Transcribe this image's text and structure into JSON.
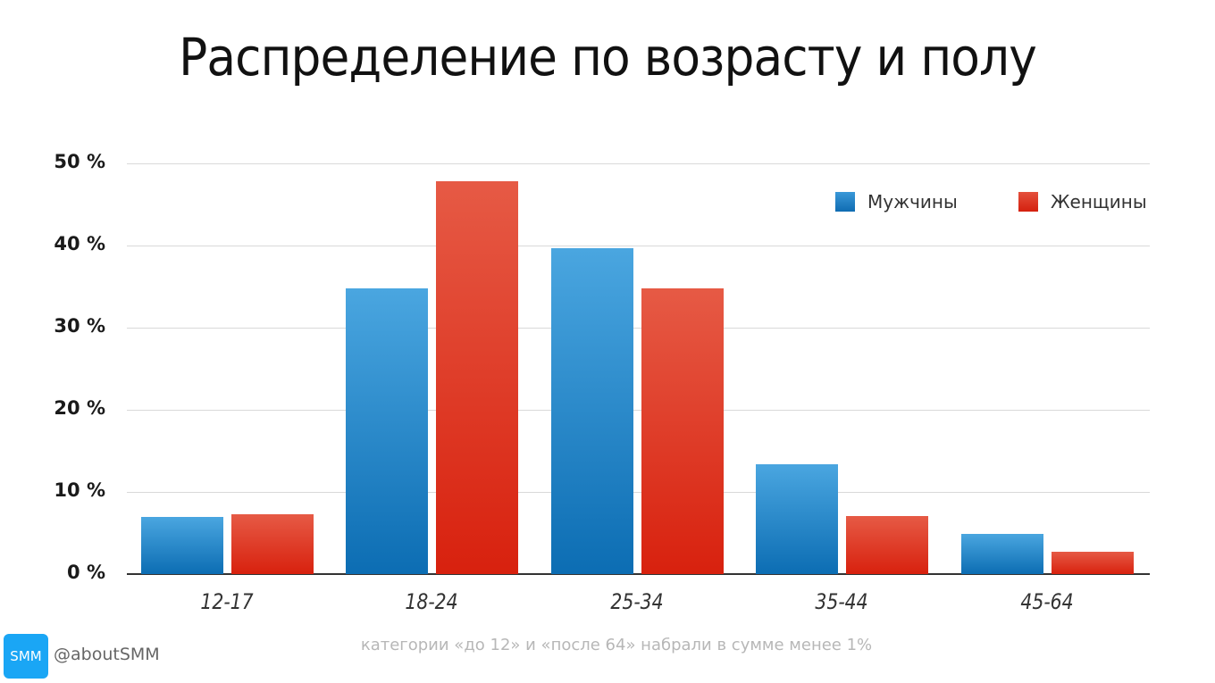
{
  "title": "Распределение по возрасту и полу",
  "legend": {
    "male": "Мужчины",
    "female": "Женщины"
  },
  "footnote": "категории «до 12» и «после 64» набрали в сумме менее 1%",
  "brand": {
    "badge": "SMM",
    "handle": "@aboutSMM",
    "badge_color": "#1aa6f5"
  },
  "colors": {
    "male": "#1a7fc4",
    "female": "#e0341f"
  },
  "yticks": [
    "50 %",
    "40 %",
    "30 %",
    "20 %",
    "10 %",
    "0 %"
  ],
  "chart_data": {
    "type": "bar",
    "title": "Распределение по возрасту и полу",
    "categories": [
      "12-17",
      "18-24",
      "25-34",
      "35-44",
      "45-64"
    ],
    "series": [
      {
        "name": "Мужчины",
        "values": [
          7.0,
          34.8,
          39.7,
          13.4,
          4.9
        ]
      },
      {
        "name": "Женщины",
        "values": [
          7.3,
          47.8,
          34.8,
          7.1,
          2.7
        ]
      }
    ],
    "xlabel": "",
    "ylabel": "",
    "ylim": [
      0,
      50
    ],
    "yticks": [
      "0 %",
      "10 %",
      "20 %",
      "30 %",
      "40 %",
      "50 %"
    ],
    "grid": true,
    "legend_position": "top-right",
    "annotation": "категории «до 12» и «после 64» набрали в сумме менее 1%"
  }
}
